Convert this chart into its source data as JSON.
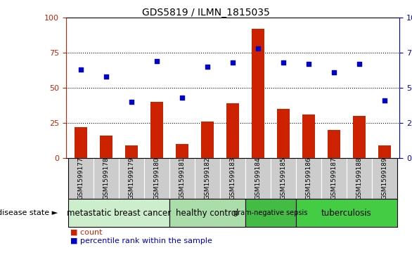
{
  "title": "GDS5819 / ILMN_1815035",
  "samples": [
    "GSM1599177",
    "GSM1599178",
    "GSM1599179",
    "GSM1599180",
    "GSM1599181",
    "GSM1599182",
    "GSM1599183",
    "GSM1599184",
    "GSM1599185",
    "GSM1599186",
    "GSM1599187",
    "GSM1599188",
    "GSM1599189"
  ],
  "counts": [
    22,
    16,
    9,
    40,
    10,
    26,
    39,
    92,
    35,
    31,
    20,
    30,
    9
  ],
  "percentiles": [
    63,
    58,
    40,
    69,
    43,
    65,
    68,
    78,
    68,
    67,
    61,
    67,
    41
  ],
  "disease_groups": [
    {
      "label": "metastatic breast cancer",
      "start": 0,
      "end": 3,
      "color": "#cceecc",
      "fontsize": 8.5
    },
    {
      "label": "healthy control",
      "start": 4,
      "end": 6,
      "color": "#aaddaa",
      "fontsize": 8.5
    },
    {
      "label": "gram-negative sepsis",
      "start": 7,
      "end": 8,
      "color": "#44bb44",
      "fontsize": 7
    },
    {
      "label": "tuberculosis",
      "start": 9,
      "end": 12,
      "color": "#44cc44",
      "fontsize": 8.5
    }
  ],
  "disease_state_label": "disease state",
  "bar_color": "#cc2200",
  "point_color": "#0000cc",
  "ylim": [
    0,
    100
  ],
  "yticks": [
    0,
    25,
    50,
    75,
    100
  ],
  "gridlines": [
    25,
    50,
    75
  ],
  "legend_count_label": "count",
  "legend_percentile_label": "percentile rank within the sample",
  "left_ytick_color": "#cc2200",
  "right_ytick_color": "#0000cc",
  "sample_box_color": "#cccccc",
  "bar_width": 0.5
}
